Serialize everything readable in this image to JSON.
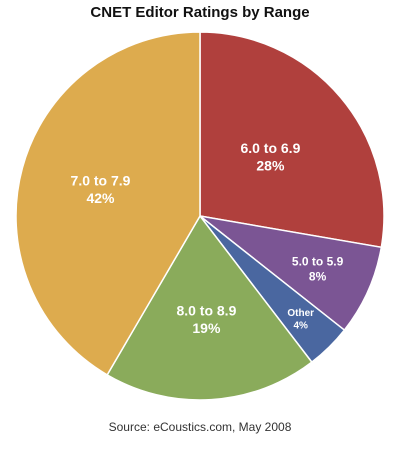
{
  "chart_data": {
    "type": "pie",
    "title": "CNET Editor Ratings by Range",
    "source": "Source: eCoustics.com, May 2008",
    "slices": [
      {
        "label": "6.0 to 6.9",
        "value": 28,
        "value_label": "28%",
        "color": "#b0403d"
      },
      {
        "label": "5.0 to 5.9",
        "value": 8,
        "value_label": "8%",
        "color": "#7b5594"
      },
      {
        "label": "Other",
        "value": 4,
        "value_label": "4%",
        "color": "#4a67a0"
      },
      {
        "label": "8.0 to 8.9",
        "value": 19,
        "value_label": "19%",
        "color": "#8aab5b"
      },
      {
        "label": "7.0 to 7.9",
        "value": 42,
        "value_label": "42%",
        "color": "#ddab4e"
      }
    ],
    "start_angle_deg": 0,
    "direction": "clockwise"
  }
}
